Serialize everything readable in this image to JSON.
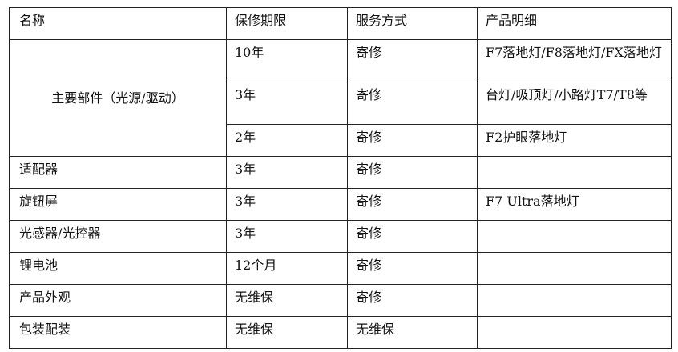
{
  "headers": [
    "名称",
    "保修期限",
    "服务方式",
    "产品明细"
  ],
  "main_part": {
    "name": "主要部件（光源/驱动）",
    "rows": [
      {
        "period": "10年",
        "service": "寄修",
        "detail": "F7落地灯/F8落地灯/FX落地灯"
      },
      {
        "period": "3年",
        "service": "寄修",
        "detail": "台灯/吸顶灯/小路灯T7/T8等"
      },
      {
        "period": "2年",
        "service": "寄修",
        "detail": "F2护眼落地灯"
      }
    ]
  },
  "rows": [
    {
      "name": "适配器",
      "period": "3年",
      "service": "寄修",
      "detail": ""
    },
    {
      "name": "旋钮屏",
      "period": "3年",
      "service": "寄修",
      "detail": "F7 Ultra落地灯"
    },
    {
      "name": "光感器/光控器",
      "period": "3年",
      "service": "寄修",
      "detail": ""
    },
    {
      "name": "锂电池",
      "period": "12个月",
      "service": "寄修",
      "detail": ""
    },
    {
      "name": "产品外观",
      "period": "无维保",
      "service": "寄修",
      "detail": ""
    },
    {
      "name": "包装配装",
      "period": "无维保",
      "service": "无维保",
      "detail": ""
    }
  ]
}
